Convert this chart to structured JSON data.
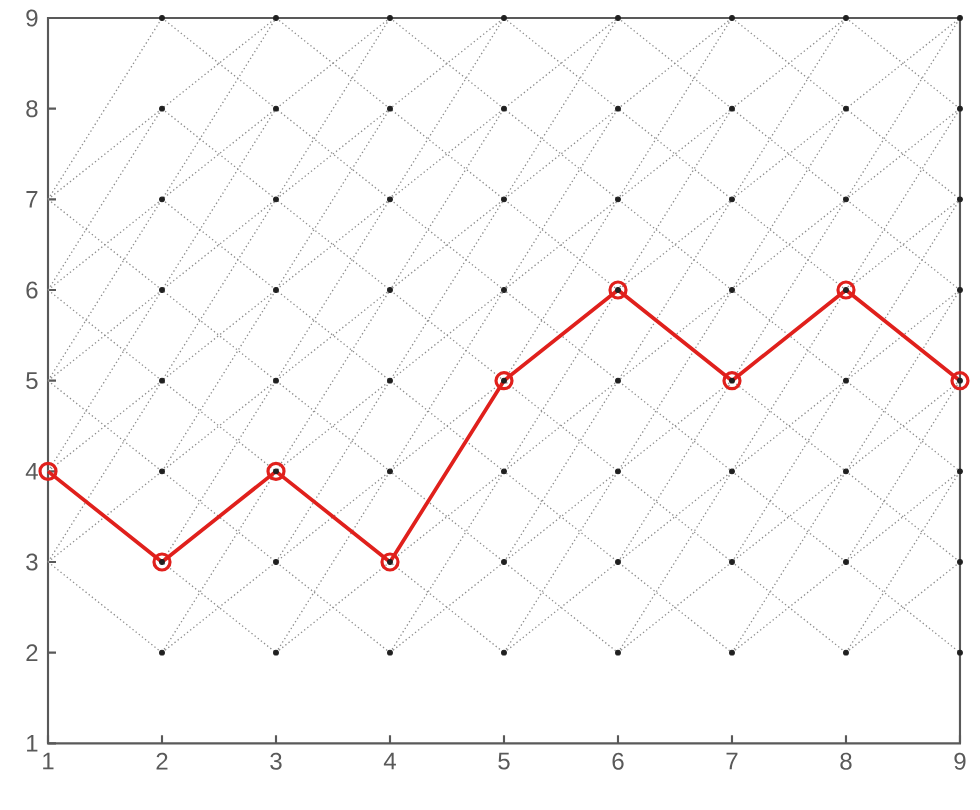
{
  "chart_data": {
    "type": "line",
    "xlim": [
      1,
      9
    ],
    "ylim": [
      1,
      9
    ],
    "xticks": [
      1,
      2,
      3,
      4,
      5,
      6,
      7,
      8,
      9
    ],
    "yticks": [
      1,
      2,
      3,
      4,
      5,
      6,
      7,
      8,
      9
    ],
    "grid": false,
    "series": [
      {
        "color": "#8c8c8c",
        "line_style": "dotted",
        "marker": "none",
        "x": [
          1,
          2,
          3,
          4,
          5,
          6,
          7
        ],
        "values": [
          3,
          4,
          5,
          6,
          7,
          8,
          9
        ]
      },
      {
        "color": "#8c8c8c",
        "line_style": "dotted",
        "marker": "none",
        "x": [
          1,
          2,
          3,
          4,
          5,
          6
        ],
        "values": [
          4,
          5,
          6,
          7,
          8,
          9
        ]
      },
      {
        "color": "#8c8c8c",
        "line_style": "dotted",
        "marker": "none",
        "x": [
          1,
          2,
          3,
          4,
          5
        ],
        "values": [
          5,
          6,
          7,
          8,
          9
        ]
      },
      {
        "color": "#8c8c8c",
        "line_style": "dotted",
        "marker": "none",
        "x": [
          1,
          2,
          3,
          4
        ],
        "values": [
          6,
          7,
          8,
          9
        ]
      },
      {
        "color": "#8c8c8c",
        "line_style": "dotted",
        "marker": "none",
        "x": [
          1,
          2,
          3
        ],
        "values": [
          7,
          8,
          9
        ]
      },
      {
        "color": "#8c8c8c",
        "line_style": "dotted",
        "marker": "none",
        "x": [
          2,
          3,
          4,
          5,
          6,
          7,
          8,
          9
        ],
        "values": [
          2,
          3,
          4,
          5,
          6,
          7,
          8,
          9
        ]
      },
      {
        "color": "#8c8c8c",
        "line_style": "dotted",
        "marker": "none",
        "x": [
          2,
          3,
          4,
          5,
          6,
          7,
          8
        ],
        "values": [
          3,
          4,
          5,
          6,
          7,
          8,
          9
        ]
      },
      {
        "color": "#8c8c8c",
        "line_style": "dotted",
        "marker": "none",
        "x": [
          3,
          4,
          5,
          6,
          7,
          8,
          9
        ],
        "values": [
          2,
          3,
          4,
          5,
          6,
          7,
          8
        ]
      },
      {
        "color": "#8c8c8c",
        "line_style": "dotted",
        "marker": "none",
        "x": [
          4,
          5,
          6,
          7,
          8,
          9
        ],
        "values": [
          2,
          3,
          4,
          5,
          6,
          7
        ]
      },
      {
        "color": "#8c8c8c",
        "line_style": "dotted",
        "marker": "none",
        "x": [
          5,
          6,
          7,
          8,
          9
        ],
        "values": [
          2,
          3,
          4,
          5,
          6
        ]
      },
      {
        "color": "#8c8c8c",
        "line_style": "dotted",
        "marker": "none",
        "x": [
          6,
          7,
          8,
          9
        ],
        "values": [
          2,
          3,
          4,
          5
        ]
      },
      {
        "color": "#8c8c8c",
        "line_style": "dotted",
        "marker": "none",
        "x": [
          7,
          8,
          9
        ],
        "values": [
          2,
          3,
          4
        ]
      },
      {
        "color": "#8c8c8c",
        "line_style": "dotted",
        "marker": "none",
        "x": [
          8,
          9
        ],
        "values": [
          2,
          3
        ]
      },
      {
        "color": "#8c8c8c",
        "line_style": "dotted",
        "marker": "none",
        "x": [
          1,
          2
        ],
        "values": [
          3,
          2
        ]
      },
      {
        "color": "#8c8c8c",
        "line_style": "dotted",
        "marker": "none",
        "x": [
          1,
          2,
          3
        ],
        "values": [
          4,
          3,
          2
        ]
      },
      {
        "color": "#8c8c8c",
        "line_style": "dotted",
        "marker": "none",
        "x": [
          1,
          2,
          3,
          4
        ],
        "values": [
          5,
          4,
          3,
          2
        ]
      },
      {
        "color": "#8c8c8c",
        "line_style": "dotted",
        "marker": "none",
        "x": [
          1,
          2,
          3,
          4,
          5
        ],
        "values": [
          6,
          5,
          4,
          3,
          2
        ]
      },
      {
        "color": "#8c8c8c",
        "line_style": "dotted",
        "marker": "none",
        "x": [
          1,
          2,
          3,
          4,
          5,
          6
        ],
        "values": [
          7,
          6,
          5,
          4,
          3,
          2
        ]
      },
      {
        "color": "#8c8c8c",
        "line_style": "dotted",
        "marker": "none",
        "x": [
          2,
          3,
          4,
          5,
          6,
          7
        ],
        "values": [
          7,
          6,
          5,
          4,
          3,
          2
        ]
      },
      {
        "color": "#8c8c8c",
        "line_style": "dotted",
        "marker": "none",
        "x": [
          2,
          3,
          4,
          5,
          6,
          7,
          8
        ],
        "values": [
          8,
          7,
          6,
          5,
          4,
          3,
          2
        ]
      },
      {
        "color": "#8c8c8c",
        "line_style": "dotted",
        "marker": "none",
        "x": [
          2,
          3,
          4,
          5,
          6,
          7,
          8,
          9
        ],
        "values": [
          9,
          8,
          7,
          6,
          5,
          4,
          3,
          2
        ]
      },
      {
        "color": "#8c8c8c",
        "line_style": "dotted",
        "marker": "none",
        "x": [
          3,
          4,
          5,
          6,
          7,
          8,
          9
        ],
        "values": [
          9,
          8,
          7,
          6,
          5,
          4,
          3
        ]
      },
      {
        "color": "#8c8c8c",
        "line_style": "dotted",
        "marker": "none",
        "x": [
          4,
          5,
          6,
          7,
          8,
          9
        ],
        "values": [
          9,
          8,
          7,
          6,
          5,
          4
        ]
      },
      {
        "color": "#8c8c8c",
        "line_style": "dotted",
        "marker": "none",
        "x": [
          5,
          6,
          7,
          8,
          9
        ],
        "values": [
          9,
          8,
          7,
          6,
          5
        ]
      },
      {
        "color": "#8c8c8c",
        "line_style": "dotted",
        "marker": "none",
        "x": [
          6,
          7,
          8,
          9
        ],
        "values": [
          9,
          8,
          7,
          6
        ]
      },
      {
        "color": "#8c8c8c",
        "line_style": "dotted",
        "marker": "none",
        "x": [
          7,
          8,
          9
        ],
        "values": [
          9,
          8,
          7
        ]
      },
      {
        "color": "#8c8c8c",
        "line_style": "dotted",
        "marker": "none",
        "x": [
          8,
          9
        ],
        "values": [
          9,
          8
        ]
      },
      {
        "color": "#8c8c8c",
        "line_style": "dotted",
        "marker": "none",
        "x": [
          1,
          2,
          3,
          4
        ],
        "values": [
          3,
          5,
          7,
          9
        ]
      },
      {
        "color": "#8c8c8c",
        "line_style": "dotted",
        "marker": "none",
        "x": [
          1,
          2,
          3
        ],
        "values": [
          4,
          6,
          8
        ]
      },
      {
        "color": "#8c8c8c",
        "line_style": "dotted",
        "marker": "none",
        "x": [
          1,
          2,
          3
        ],
        "values": [
          5,
          7,
          9
        ]
      },
      {
        "color": "#8c8c8c",
        "line_style": "dotted",
        "marker": "none",
        "x": [
          1,
          2
        ],
        "values": [
          6,
          8
        ]
      },
      {
        "color": "#8c8c8c",
        "line_style": "dotted",
        "marker": "none",
        "x": [
          1,
          2
        ],
        "values": [
          7,
          9
        ]
      },
      {
        "color": "#8c8c8c",
        "line_style": "dotted",
        "marker": "none",
        "x": [
          2,
          3,
          4,
          5
        ],
        "values": [
          2,
          4,
          6,
          8
        ]
      },
      {
        "color": "#8c8c8c",
        "line_style": "dotted",
        "marker": "none",
        "x": [
          2,
          3,
          4,
          5
        ],
        "values": [
          3,
          5,
          7,
          9
        ]
      },
      {
        "color": "#8c8c8c",
        "line_style": "dotted",
        "marker": "none",
        "x": [
          2,
          3,
          4
        ],
        "values": [
          4,
          6,
          8
        ]
      },
      {
        "color": "#8c8c8c",
        "line_style": "dotted",
        "marker": "none",
        "x": [
          3,
          4,
          5,
          6
        ],
        "values": [
          2,
          4,
          6,
          8
        ]
      },
      {
        "color": "#8c8c8c",
        "line_style": "dotted",
        "marker": "none",
        "x": [
          3,
          4,
          5,
          6
        ],
        "values": [
          3,
          5,
          7,
          9
        ]
      },
      {
        "color": "#8c8c8c",
        "line_style": "dotted",
        "marker": "none",
        "x": [
          4,
          5,
          6,
          7
        ],
        "values": [
          2,
          4,
          6,
          8
        ]
      },
      {
        "color": "#8c8c8c",
        "line_style": "dotted",
        "marker": "none",
        "x": [
          4,
          5,
          6,
          7
        ],
        "values": [
          3,
          5,
          7,
          9
        ]
      },
      {
        "color": "#8c8c8c",
        "line_style": "dotted",
        "marker": "none",
        "x": [
          5,
          6,
          7,
          8
        ],
        "values": [
          2,
          4,
          6,
          8
        ]
      },
      {
        "color": "#8c8c8c",
        "line_style": "dotted",
        "marker": "none",
        "x": [
          5,
          6,
          7,
          8
        ],
        "values": [
          3,
          5,
          7,
          9
        ]
      },
      {
        "color": "#8c8c8c",
        "line_style": "dotted",
        "marker": "none",
        "x": [
          6,
          7,
          8,
          9
        ],
        "values": [
          2,
          4,
          6,
          8
        ]
      },
      {
        "color": "#8c8c8c",
        "line_style": "dotted",
        "marker": "none",
        "x": [
          6,
          7,
          8,
          9
        ],
        "values": [
          3,
          5,
          7,
          9
        ]
      },
      {
        "color": "#8c8c8c",
        "line_style": "dotted",
        "marker": "none",
        "x": [
          7,
          8,
          9
        ],
        "values": [
          2,
          4,
          6
        ]
      },
      {
        "color": "#8c8c8c",
        "line_style": "dotted",
        "marker": "none",
        "x": [
          7,
          8,
          9
        ],
        "values": [
          3,
          5,
          7
        ]
      },
      {
        "color": "#8c8c8c",
        "line_style": "dotted",
        "marker": "none",
        "x": [
          8,
          9
        ],
        "values": [
          2,
          4
        ]
      },
      {
        "color": "#8c8c8c",
        "line_style": "dotted",
        "marker": "none",
        "x": [
          8,
          9
        ],
        "values": [
          3,
          5
        ]
      },
      {
        "type": "scatter",
        "color": "#202020",
        "marker": "circle",
        "x": [
          2,
          2,
          2,
          2,
          2,
          2,
          2,
          2,
          3,
          3,
          3,
          3,
          3,
          3,
          3,
          3,
          4,
          4,
          4,
          4,
          4,
          4,
          4,
          4,
          5,
          5,
          5,
          5,
          5,
          5,
          5,
          5,
          6,
          6,
          6,
          6,
          6,
          6,
          6,
          6,
          7,
          7,
          7,
          7,
          7,
          7,
          7,
          7,
          8,
          8,
          8,
          8,
          8,
          8,
          8,
          8,
          9,
          9,
          9,
          9,
          9,
          9,
          9,
          9
        ],
        "values": [
          2,
          3,
          4,
          5,
          6,
          7,
          8,
          9,
          2,
          3,
          4,
          5,
          6,
          7,
          8,
          9,
          2,
          3,
          4,
          5,
          6,
          7,
          8,
          9,
          2,
          3,
          4,
          5,
          6,
          7,
          8,
          9,
          2,
          3,
          4,
          5,
          6,
          7,
          8,
          9,
          2,
          3,
          4,
          5,
          6,
          7,
          8,
          9,
          2,
          3,
          4,
          5,
          6,
          7,
          8,
          9,
          2,
          3,
          4,
          5,
          6,
          7,
          8,
          9
        ]
      },
      {
        "color": "#e0201c",
        "line_style": "solid",
        "marker": "circle",
        "x": [
          1,
          2,
          3,
          4,
          5,
          6,
          7,
          8,
          9
        ],
        "values": [
          4,
          3,
          4,
          3,
          5,
          6,
          5,
          6,
          5
        ]
      }
    ]
  }
}
